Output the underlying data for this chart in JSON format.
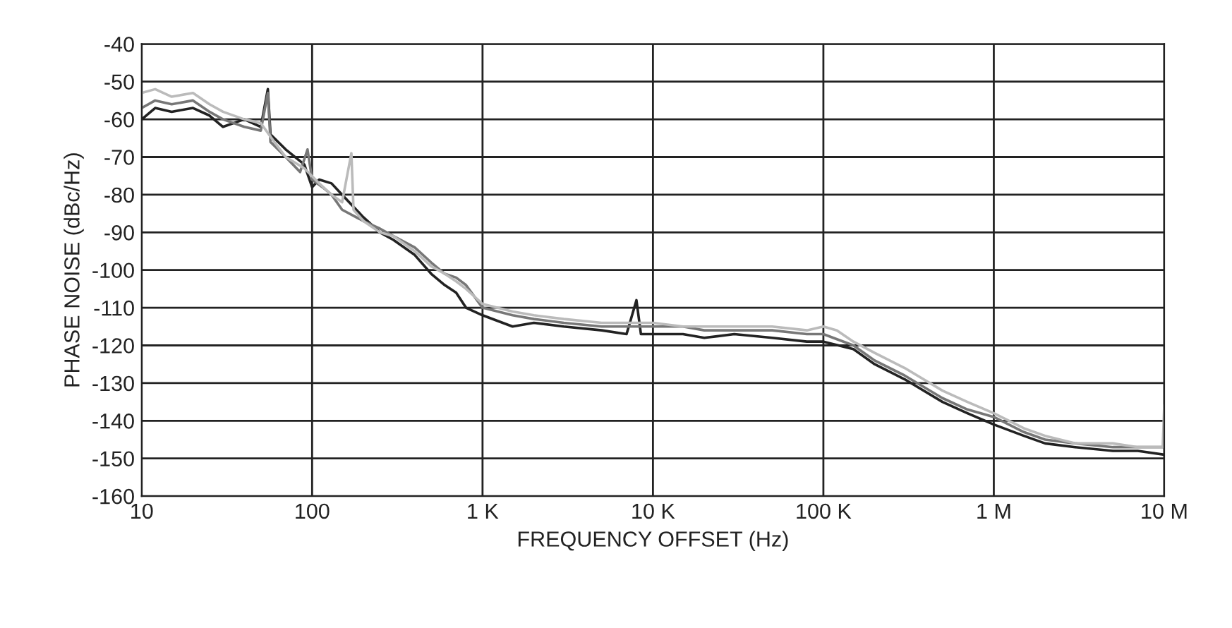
{
  "chart_data": {
    "type": "line",
    "xlabel": "FREQUENCY OFFSET (Hz)",
    "ylabel": "PHASE NOISE (dBc/Hz)",
    "log": "x",
    "grid": true,
    "line_style": "solid",
    "marker": "none",
    "xlim": [
      10,
      10000000
    ],
    "xticks": [
      10,
      100,
      {
        "value": 1000,
        "label": "1 K"
      },
      {
        "value": 10000,
        "label": "10 K"
      },
      {
        "value": 100000,
        "label": "100 K"
      },
      {
        "value": 1000000,
        "label": "1 M"
      },
      {
        "value": 10000000,
        "label": "10 M"
      }
    ],
    "ylim": [
      -160,
      -40
    ],
    "yticks": [
      -160,
      -150,
      -140,
      -130,
      -120,
      -110,
      -100,
      -90,
      -80,
      -70,
      -60,
      -50,
      -40
    ],
    "series": [
      {
        "color": "#222222",
        "x": [
          10,
          12,
          15,
          20,
          25,
          30,
          40,
          50,
          55,
          57,
          70,
          90,
          100,
          110,
          130,
          150,
          200,
          250,
          300,
          400,
          500,
          600,
          700,
          800,
          1000,
          1500,
          2000,
          3000,
          5000,
          7000,
          8000,
          8500,
          10000,
          15000,
          20000,
          30000,
          50000,
          80000,
          100000,
          150000,
          200000,
          300000,
          500000,
          700000,
          1000000,
          1500000,
          2000000,
          3000000,
          5000000,
          7000000,
          10000000
        ],
        "values": [
          -60,
          -57,
          -58,
          -57,
          -59,
          -62,
          -60,
          -62,
          -52,
          -64,
          -68,
          -72,
          -78,
          -76,
          -77,
          -80,
          -86,
          -90,
          -92,
          -96,
          -101,
          -104,
          -106,
          -110,
          -112,
          -115,
          -114,
          -115,
          -116,
          -117,
          -108,
          -117,
          -117,
          -117,
          -118,
          -117,
          -118,
          -119,
          -119,
          -121,
          -125,
          -129,
          -135,
          -138,
          -141,
          -144,
          -146,
          -147,
          -148,
          -148,
          -149
        ]
      },
      {
        "color": "#777777",
        "x": [
          10,
          12,
          15,
          20,
          25,
          30,
          40,
          50,
          55,
          57,
          70,
          85,
          94,
          100,
          115,
          130,
          150,
          200,
          250,
          300,
          400,
          500,
          600,
          700,
          800,
          1000,
          1500,
          2000,
          3000,
          5000,
          7000,
          10000,
          15000,
          20000,
          30000,
          50000,
          80000,
          100000,
          150000,
          200000,
          300000,
          500000,
          700000,
          1000000,
          1500000,
          2000000,
          3000000,
          5000000,
          7000000,
          10000000
        ],
        "values": [
          -57,
          -55,
          -56,
          -55,
          -58,
          -60,
          -62,
          -63,
          -53,
          -66,
          -70,
          -74,
          -68,
          -76,
          -78,
          -80,
          -84,
          -87,
          -89,
          -91,
          -94,
          -98,
          -101,
          -102,
          -104,
          -110,
          -112,
          -113,
          -114,
          -115,
          -115,
          -115,
          -115,
          -116,
          -116,
          -116,
          -117,
          -117,
          -120,
          -124,
          -128,
          -134,
          -137,
          -139,
          -143,
          -145,
          -146,
          -147,
          -147,
          -147
        ]
      },
      {
        "color": "#bbbbbb",
        "x": [
          10,
          12,
          15,
          20,
          25,
          30,
          40,
          50,
          60,
          70,
          90,
          110,
          130,
          150,
          170,
          175,
          200,
          250,
          300,
          400,
          500,
          600,
          700,
          800,
          1000,
          1500,
          2000,
          3000,
          5000,
          7000,
          10000,
          15000,
          20000,
          30000,
          50000,
          80000,
          100000,
          120000,
          150000,
          200000,
          300000,
          500000,
          700000,
          1000000,
          1500000,
          2000000,
          3000000,
          5000000,
          7000000,
          9800000,
          10000000
        ],
        "values": [
          -53,
          -52,
          -54,
          -53,
          -56,
          -58,
          -60,
          -61,
          -66,
          -70,
          -73,
          -77,
          -80,
          -82,
          -69,
          -84,
          -87,
          -90,
          -91,
          -95,
          -99,
          -101,
          -103,
          -105,
          -109,
          -111,
          -112,
          -113,
          -114,
          -114,
          -114,
          -115,
          -115,
          -115,
          -115,
          -116,
          -115,
          -116,
          -119,
          -122,
          -126,
          -132,
          -135,
          -138,
          -142,
          -144,
          -146,
          -146,
          -147,
          -147,
          -136
        ]
      }
    ]
  }
}
